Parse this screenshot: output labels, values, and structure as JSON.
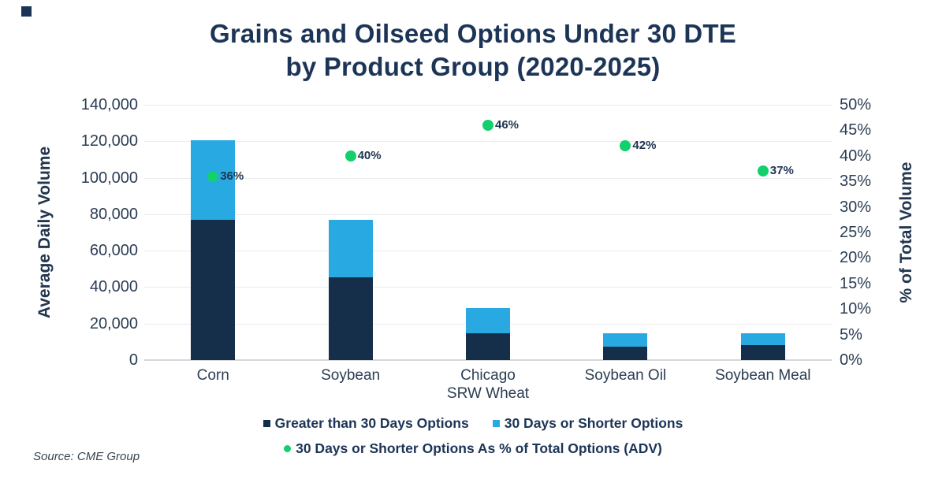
{
  "title": {
    "line1": "Grains and Oilseed Options Under 30 DTE",
    "line2": "by Product Group (2020-2025)"
  },
  "source": "Source: CME Group",
  "colors": {
    "navy_bar": "#152e4a",
    "light_blue": "#29a9e1",
    "green": "#12d06b",
    "title_text": "#1c3557",
    "brand_mark": "#1b3457",
    "gridline": "#eaebed",
    "axis_line": "#d4d8dc"
  },
  "axes": {
    "left": {
      "title": "Average Daily Volume",
      "ticks": [
        "140,000",
        "120,000",
        "100,000",
        "80,000",
        "60,000",
        "40,000",
        "20,000",
        "0"
      ],
      "max": 140000
    },
    "right": {
      "title": "% of Total Volume",
      "ticks": [
        "50%",
        "45%",
        "40%",
        "35%",
        "30%",
        "25%",
        "20%",
        "15%",
        "10%",
        "5%",
        "0%"
      ],
      "max": 50
    }
  },
  "legend": {
    "rows": [
      {
        "items": [
          {
            "marker": "square",
            "color": "#152e4a",
            "label": "Greater than 30 Days Options"
          },
          {
            "marker": "square",
            "color": "#29a9e1",
            "label": "30 Days or Shorter Options"
          }
        ]
      },
      {
        "items": [
          {
            "marker": "circle",
            "color": "#12d06b",
            "label": "30 Days or Shorter Options As % of Total Options (ADV)"
          }
        ]
      }
    ]
  },
  "chart_data": {
    "type": "bar",
    "subtype": "stacked-bars-with-percent-dots",
    "title": "Grains and Oilseed Options Under 30 DTE by Product Group (2020-2025)",
    "categories": [
      "Corn",
      "Soybean",
      "Chicago SRW Wheat",
      "Soybean Oil",
      "Soybean Meal"
    ],
    "categories_lines": [
      [
        "Corn"
      ],
      [
        "Soybean"
      ],
      [
        "Chicago",
        "SRW Wheat"
      ],
      [
        "Soybean Oil"
      ],
      [
        "Soybean Meal"
      ]
    ],
    "series": [
      {
        "name": "Greater than 30 Days Options",
        "type": "bar",
        "stack": 1,
        "axis": "left",
        "color": "#152e4a",
        "values": [
          77000,
          45500,
          14500,
          7500,
          8000
        ]
      },
      {
        "name": "30 Days or Shorter Options",
        "type": "bar",
        "stack": 1,
        "axis": "left",
        "color": "#29a9e1",
        "values": [
          43500,
          31500,
          14000,
          7000,
          6500
        ]
      },
      {
        "name": "30 Days or Shorter Options As % of Total Options (ADV)",
        "type": "scatter",
        "axis": "right",
        "color": "#12d06b",
        "values": [
          36,
          40,
          46,
          42,
          37
        ],
        "labels": [
          "36%",
          "40%",
          "46%",
          "42%",
          "37%"
        ]
      }
    ],
    "ylabel_left": "Average Daily Volume",
    "ylabel_right": "% of Total Volume",
    "ylim_left": [
      0,
      140000
    ],
    "ylim_right": [
      0,
      50
    ],
    "grid": true,
    "legend_position": "bottom"
  }
}
